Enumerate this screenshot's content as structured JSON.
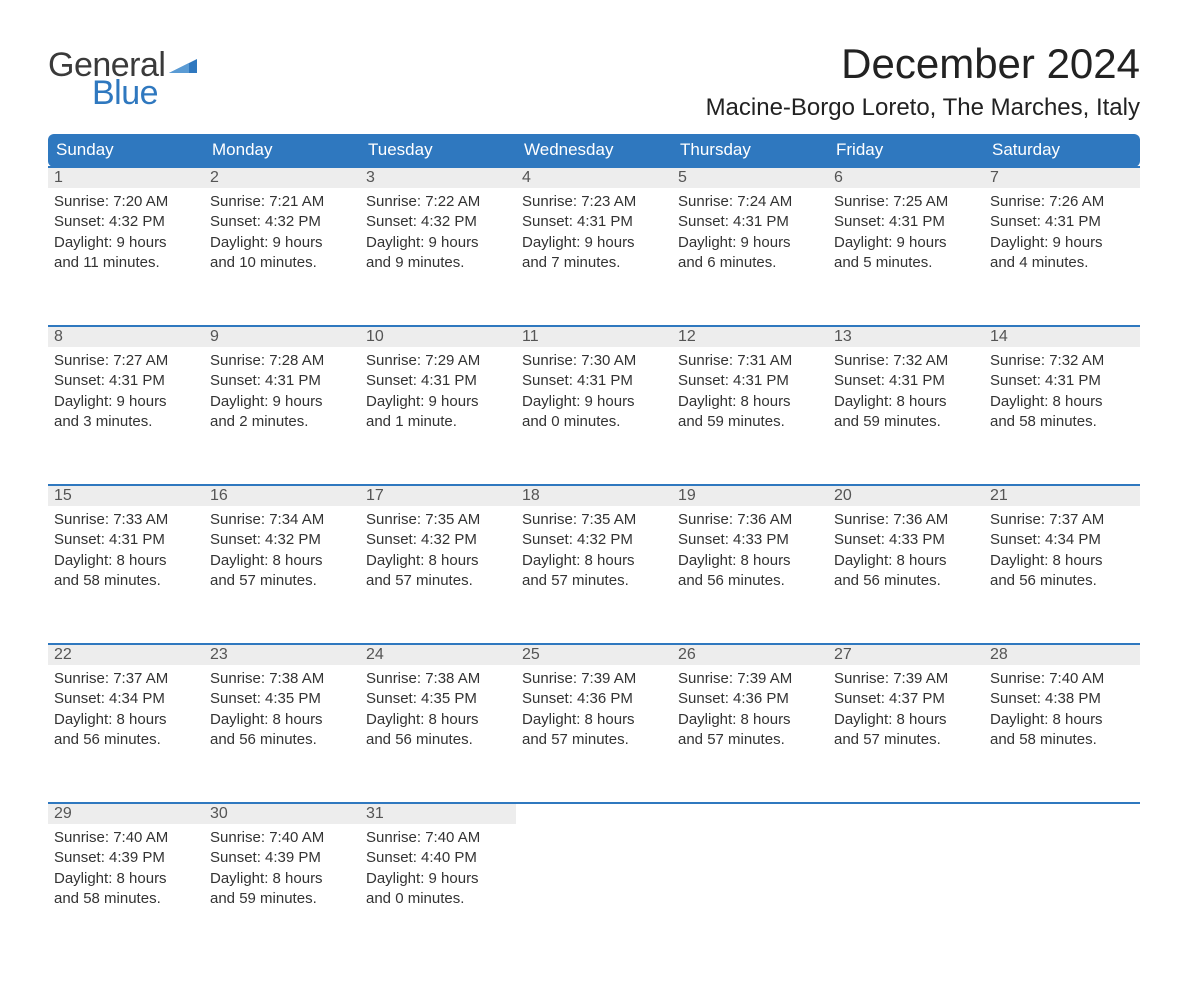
{
  "brand": {
    "general": "General",
    "blue": "Blue",
    "flag_color": "#2f78bf"
  },
  "title": "December 2024",
  "location": "Macine-Borgo Loreto, The Marches, Italy",
  "colors": {
    "header_bg": "#2f78bf",
    "header_text": "#ffffff",
    "daynum_bg": "#ededed",
    "daynum_border": "#2f78bf",
    "body_text": "#333333",
    "page_bg": "#ffffff"
  },
  "typography": {
    "title_fontsize": 42,
    "location_fontsize": 24,
    "weekday_fontsize": 17,
    "daynum_fontsize": 16,
    "detail_fontsize": 15
  },
  "weekdays": [
    "Sunday",
    "Monday",
    "Tuesday",
    "Wednesday",
    "Thursday",
    "Friday",
    "Saturday"
  ],
  "weeks": [
    [
      {
        "day": "1",
        "sunrise": "Sunrise: 7:20 AM",
        "sunset": "Sunset: 4:32 PM",
        "dl1": "Daylight: 9 hours",
        "dl2": "and 11 minutes."
      },
      {
        "day": "2",
        "sunrise": "Sunrise: 7:21 AM",
        "sunset": "Sunset: 4:32 PM",
        "dl1": "Daylight: 9 hours",
        "dl2": "and 10 minutes."
      },
      {
        "day": "3",
        "sunrise": "Sunrise: 7:22 AM",
        "sunset": "Sunset: 4:32 PM",
        "dl1": "Daylight: 9 hours",
        "dl2": "and 9 minutes."
      },
      {
        "day": "4",
        "sunrise": "Sunrise: 7:23 AM",
        "sunset": "Sunset: 4:31 PM",
        "dl1": "Daylight: 9 hours",
        "dl2": "and 7 minutes."
      },
      {
        "day": "5",
        "sunrise": "Sunrise: 7:24 AM",
        "sunset": "Sunset: 4:31 PM",
        "dl1": "Daylight: 9 hours",
        "dl2": "and 6 minutes."
      },
      {
        "day": "6",
        "sunrise": "Sunrise: 7:25 AM",
        "sunset": "Sunset: 4:31 PM",
        "dl1": "Daylight: 9 hours",
        "dl2": "and 5 minutes."
      },
      {
        "day": "7",
        "sunrise": "Sunrise: 7:26 AM",
        "sunset": "Sunset: 4:31 PM",
        "dl1": "Daylight: 9 hours",
        "dl2": "and 4 minutes."
      }
    ],
    [
      {
        "day": "8",
        "sunrise": "Sunrise: 7:27 AM",
        "sunset": "Sunset: 4:31 PM",
        "dl1": "Daylight: 9 hours",
        "dl2": "and 3 minutes."
      },
      {
        "day": "9",
        "sunrise": "Sunrise: 7:28 AM",
        "sunset": "Sunset: 4:31 PM",
        "dl1": "Daylight: 9 hours",
        "dl2": "and 2 minutes."
      },
      {
        "day": "10",
        "sunrise": "Sunrise: 7:29 AM",
        "sunset": "Sunset: 4:31 PM",
        "dl1": "Daylight: 9 hours",
        "dl2": "and 1 minute."
      },
      {
        "day": "11",
        "sunrise": "Sunrise: 7:30 AM",
        "sunset": "Sunset: 4:31 PM",
        "dl1": "Daylight: 9 hours",
        "dl2": "and 0 minutes."
      },
      {
        "day": "12",
        "sunrise": "Sunrise: 7:31 AM",
        "sunset": "Sunset: 4:31 PM",
        "dl1": "Daylight: 8 hours",
        "dl2": "and 59 minutes."
      },
      {
        "day": "13",
        "sunrise": "Sunrise: 7:32 AM",
        "sunset": "Sunset: 4:31 PM",
        "dl1": "Daylight: 8 hours",
        "dl2": "and 59 minutes."
      },
      {
        "day": "14",
        "sunrise": "Sunrise: 7:32 AM",
        "sunset": "Sunset: 4:31 PM",
        "dl1": "Daylight: 8 hours",
        "dl2": "and 58 minutes."
      }
    ],
    [
      {
        "day": "15",
        "sunrise": "Sunrise: 7:33 AM",
        "sunset": "Sunset: 4:31 PM",
        "dl1": "Daylight: 8 hours",
        "dl2": "and 58 minutes."
      },
      {
        "day": "16",
        "sunrise": "Sunrise: 7:34 AM",
        "sunset": "Sunset: 4:32 PM",
        "dl1": "Daylight: 8 hours",
        "dl2": "and 57 minutes."
      },
      {
        "day": "17",
        "sunrise": "Sunrise: 7:35 AM",
        "sunset": "Sunset: 4:32 PM",
        "dl1": "Daylight: 8 hours",
        "dl2": "and 57 minutes."
      },
      {
        "day": "18",
        "sunrise": "Sunrise: 7:35 AM",
        "sunset": "Sunset: 4:32 PM",
        "dl1": "Daylight: 8 hours",
        "dl2": "and 57 minutes."
      },
      {
        "day": "19",
        "sunrise": "Sunrise: 7:36 AM",
        "sunset": "Sunset: 4:33 PM",
        "dl1": "Daylight: 8 hours",
        "dl2": "and 56 minutes."
      },
      {
        "day": "20",
        "sunrise": "Sunrise: 7:36 AM",
        "sunset": "Sunset: 4:33 PM",
        "dl1": "Daylight: 8 hours",
        "dl2": "and 56 minutes."
      },
      {
        "day": "21",
        "sunrise": "Sunrise: 7:37 AM",
        "sunset": "Sunset: 4:34 PM",
        "dl1": "Daylight: 8 hours",
        "dl2": "and 56 minutes."
      }
    ],
    [
      {
        "day": "22",
        "sunrise": "Sunrise: 7:37 AM",
        "sunset": "Sunset: 4:34 PM",
        "dl1": "Daylight: 8 hours",
        "dl2": "and 56 minutes."
      },
      {
        "day": "23",
        "sunrise": "Sunrise: 7:38 AM",
        "sunset": "Sunset: 4:35 PM",
        "dl1": "Daylight: 8 hours",
        "dl2": "and 56 minutes."
      },
      {
        "day": "24",
        "sunrise": "Sunrise: 7:38 AM",
        "sunset": "Sunset: 4:35 PM",
        "dl1": "Daylight: 8 hours",
        "dl2": "and 56 minutes."
      },
      {
        "day": "25",
        "sunrise": "Sunrise: 7:39 AM",
        "sunset": "Sunset: 4:36 PM",
        "dl1": "Daylight: 8 hours",
        "dl2": "and 57 minutes."
      },
      {
        "day": "26",
        "sunrise": "Sunrise: 7:39 AM",
        "sunset": "Sunset: 4:36 PM",
        "dl1": "Daylight: 8 hours",
        "dl2": "and 57 minutes."
      },
      {
        "day": "27",
        "sunrise": "Sunrise: 7:39 AM",
        "sunset": "Sunset: 4:37 PM",
        "dl1": "Daylight: 8 hours",
        "dl2": "and 57 minutes."
      },
      {
        "day": "28",
        "sunrise": "Sunrise: 7:40 AM",
        "sunset": "Sunset: 4:38 PM",
        "dl1": "Daylight: 8 hours",
        "dl2": "and 58 minutes."
      }
    ],
    [
      {
        "day": "29",
        "sunrise": "Sunrise: 7:40 AM",
        "sunset": "Sunset: 4:39 PM",
        "dl1": "Daylight: 8 hours",
        "dl2": "and 58 minutes."
      },
      {
        "day": "30",
        "sunrise": "Sunrise: 7:40 AM",
        "sunset": "Sunset: 4:39 PM",
        "dl1": "Daylight: 8 hours",
        "dl2": "and 59 minutes."
      },
      {
        "day": "31",
        "sunrise": "Sunrise: 7:40 AM",
        "sunset": "Sunset: 4:40 PM",
        "dl1": "Daylight: 9 hours",
        "dl2": "and 0 minutes."
      },
      null,
      null,
      null,
      null
    ]
  ]
}
